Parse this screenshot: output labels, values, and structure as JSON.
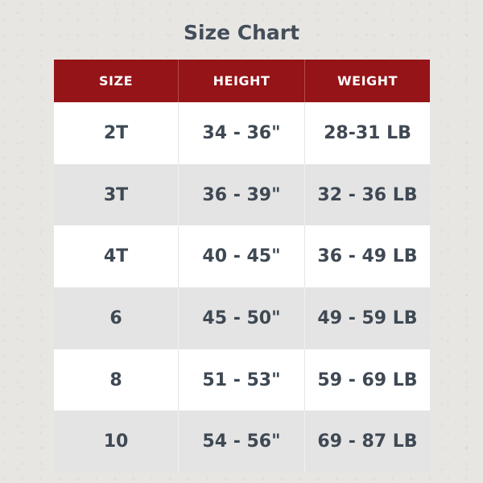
{
  "title": "Size Chart",
  "colors": {
    "header_bg": "#951418",
    "header_text": "#ffffff",
    "body_text": "#3f4954"
  },
  "table": {
    "headers": [
      "SIZE",
      "HEIGHT",
      "WEIGHT"
    ],
    "rows": [
      [
        "2T",
        "34 - 36\"",
        "28-31 LB"
      ],
      [
        "3T",
        "36 - 39\"",
        "32 - 36 LB"
      ],
      [
        "4T",
        "40 - 45\"",
        "36 - 49 LB"
      ],
      [
        "6",
        "45 - 50\"",
        "49 - 59 LB"
      ],
      [
        "8",
        "51 - 53\"",
        "59 - 69 LB"
      ],
      [
        "10",
        "54 - 56\"",
        "69 - 87 LB"
      ]
    ]
  }
}
